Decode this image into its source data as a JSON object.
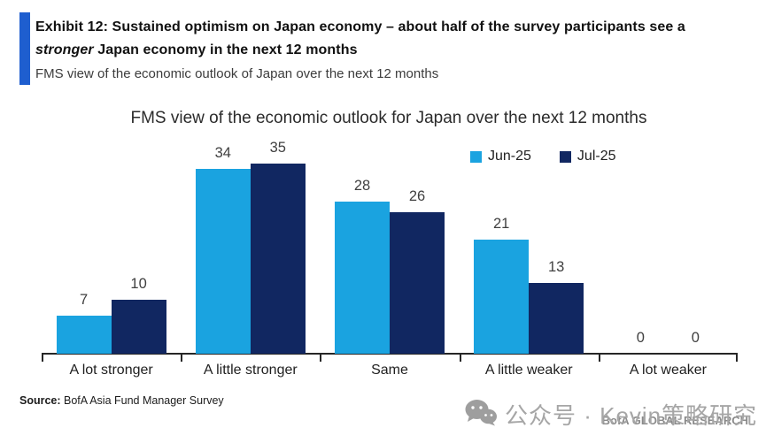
{
  "header": {
    "accent_color": "#1e5ecf",
    "title_line1": "Exhibit 12: Sustained optimism on Japan economy – about half of the survey participants see a",
    "title_italic_word": "stronger",
    "title_line2_rest": " Japan economy in the next 12 months",
    "subtitle": "FMS view of the economic outlook of Japan over the next 12 months"
  },
  "chart_data": {
    "type": "bar",
    "title": "FMS view of the economic outlook for Japan over the next 12 months",
    "categories": [
      "A lot stronger",
      "A little stronger",
      "Same",
      "A little weaker",
      "A lot weaker"
    ],
    "series": [
      {
        "name": "Jun-25",
        "color": "#1aa3e0",
        "values": [
          7,
          34,
          28,
          21,
          0
        ]
      },
      {
        "name": "Jul-25",
        "color": "#112761",
        "values": [
          10,
          35,
          26,
          13,
          0
        ]
      }
    ],
    "xlabel": "",
    "ylabel": "",
    "ylim": [
      0,
      40
    ],
    "grid": false,
    "legend_position": "top-right",
    "data_labels": true
  },
  "footer": {
    "source_label": "Source:",
    "source_text": " BofA Asia Fund Manager Survey",
    "brand": "BofA GLOBAL RESEARCH"
  },
  "watermark": {
    "icon": "wechat-icon",
    "text": "公众号 · Kevin策略研究",
    "color": "#a6a6a6"
  }
}
